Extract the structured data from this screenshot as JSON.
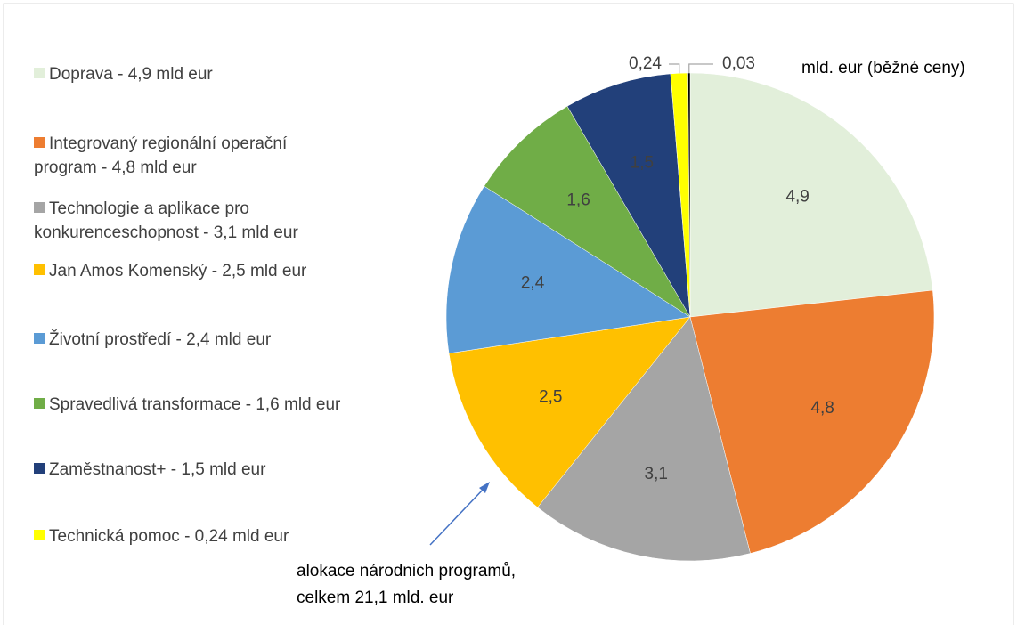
{
  "chart_data": {
    "type": "pie",
    "categories": [
      "Doprava - 4,9 mld eur",
      "Integrovaný regionální operační program - 4,8 mld eur",
      "Technologie a aplikace pro konkurenceschopnost - 3,1 mld eur",
      "Jan Amos Komenský - 2,5 mld eur",
      "Životní prostředí - 2,4 mld eur",
      "Spravedlivá transformace - 1,6 mld eur",
      "Zaměstnanost+ - 1,5 mld eur",
      "Technická pomoc - 0,24 mld eur",
      null
    ],
    "values": [
      4.9,
      4.8,
      3.1,
      2.5,
      2.4,
      1.6,
      1.5,
      0.24,
      0.03
    ],
    "value_labels": [
      "4,9",
      "4,8",
      "3,1",
      "2,5",
      "2,4",
      "1,6",
      "1,5",
      "0,24",
      "0,03"
    ],
    "colors": [
      "#e2efda",
      "#ed7d31",
      "#a5a5a5",
      "#ffc000",
      "#5b9bd5",
      "#70ad47",
      "#22407a",
      "#ffff00",
      "#000000"
    ],
    "unit_note": "mld. eur (běžné ceny)",
    "annotation": [
      "alokace národnich programů,",
      "celkem 21,1 mld. eur"
    ]
  }
}
